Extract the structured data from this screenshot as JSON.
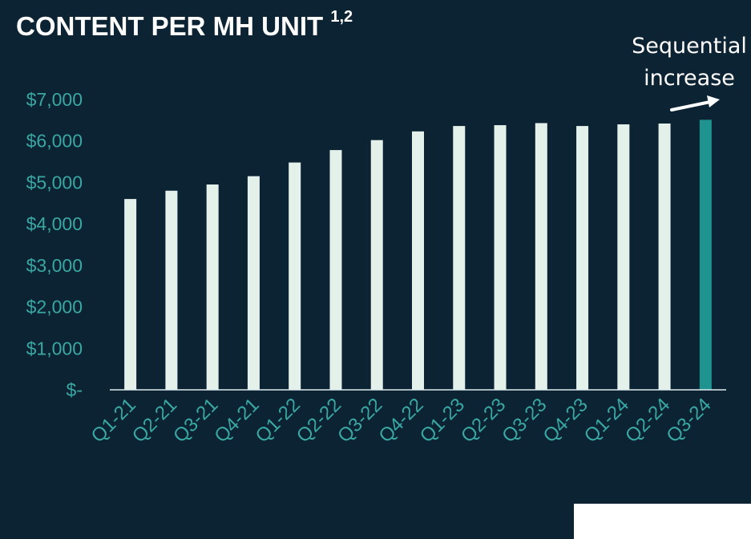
{
  "page": {
    "title": "CONTENT PER MH UNIT",
    "title_superscript": "1,2",
    "annotation_line1": "Sequential",
    "annotation_line2": "increase",
    "arrow_icon": "arrow-up-right-icon"
  },
  "chart_data": {
    "type": "bar",
    "title": "CONTENT PER MH UNIT 1,2",
    "categories": [
      "Q1-21",
      "Q2-21",
      "Q3-21",
      "Q4-21",
      "Q1-22",
      "Q2-22",
      "Q3-22",
      "Q4-22",
      "Q1-23",
      "Q2-23",
      "Q3-23",
      "Q4-23",
      "Q1-24",
      "Q2-24",
      "Q3-24"
    ],
    "values": [
      4600,
      4800,
      4950,
      5150,
      5480,
      5780,
      6020,
      6230,
      6360,
      6380,
      6430,
      6360,
      6400,
      6420,
      6510
    ],
    "y_tick_labels": [
      "$-",
      "$1,000",
      "$2,000",
      "$3,000",
      "$4,000",
      "$5,000",
      "$6,000",
      "$7,000"
    ],
    "ylim": [
      0,
      7000
    ],
    "grid": false,
    "colors": {
      "bar": "#e3f1ea",
      "highlight_bar": "#1f9390",
      "tick_label": "#3aa7a2",
      "axis": "#dcebee",
      "background": "#0b2333"
    },
    "highlight_index": 14
  }
}
